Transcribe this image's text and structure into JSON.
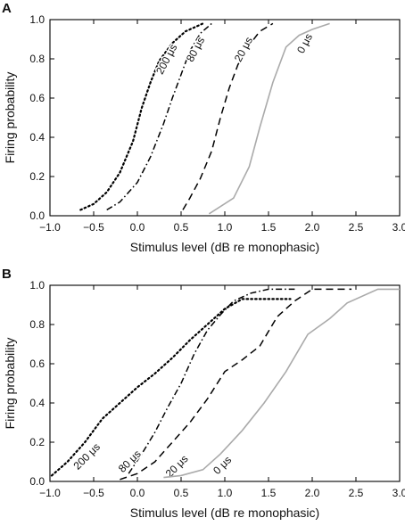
{
  "chart_data": [
    {
      "panel": "A",
      "type": "line",
      "xlabel": "Stimulus level (dB re monophasic)",
      "ylabel": "Firing probability",
      "xlim": [
        -1.0,
        3.0
      ],
      "ylim": [
        0.0,
        1.0
      ],
      "xticks": [
        "−1.0",
        "−0.5",
        "0.0",
        "0.5",
        "1.0",
        "1.5",
        "2.0",
        "2.5",
        "3.0"
      ],
      "yticks": [
        "0.0",
        "0.2",
        "0.4",
        "0.6",
        "0.8",
        "1.0"
      ],
      "grid": false,
      "series": [
        {
          "name": "200 μs",
          "style": "dotted",
          "color": "#000000",
          "x": [
            -0.65,
            -0.5,
            -0.35,
            -0.2,
            -0.05,
            0.05,
            0.15,
            0.25,
            0.4,
            0.55,
            0.75
          ],
          "y": [
            0.03,
            0.06,
            0.12,
            0.22,
            0.38,
            0.55,
            0.68,
            0.79,
            0.88,
            0.94,
            0.98
          ],
          "label_pos": [
            0.37,
            0.79
          ],
          "label_angle": -62
        },
        {
          "name": "80 μs",
          "style": "dashdot",
          "color": "#000000",
          "x": [
            -0.35,
            -0.2,
            0.0,
            0.15,
            0.3,
            0.4,
            0.5,
            0.6,
            0.72,
            0.85
          ],
          "y": [
            0.03,
            0.07,
            0.17,
            0.3,
            0.47,
            0.6,
            0.72,
            0.84,
            0.93,
            0.98
          ],
          "label_pos": [
            0.7,
            0.84
          ],
          "label_angle": -62
        },
        {
          "name": "20 μs",
          "style": "dashed",
          "color": "#000000",
          "x": [
            0.52,
            0.6,
            0.72,
            0.85,
            0.95,
            1.05,
            1.15,
            1.28,
            1.4,
            1.55
          ],
          "y": [
            0.03,
            0.09,
            0.19,
            0.33,
            0.5,
            0.65,
            0.77,
            0.87,
            0.94,
            0.98
          ],
          "label_pos": [
            1.25,
            0.84
          ],
          "label_angle": -62
        },
        {
          "name": "0 μs",
          "style": "solid",
          "color": "#aaaaaa",
          "x": [
            0.82,
            1.1,
            1.28,
            1.4,
            1.55,
            1.7,
            1.85,
            2.0,
            2.2
          ],
          "y": [
            0.01,
            0.09,
            0.25,
            0.45,
            0.68,
            0.86,
            0.92,
            0.95,
            0.98
          ],
          "label_pos": [
            1.95,
            0.87
          ],
          "label_angle": -62
        }
      ]
    },
    {
      "panel": "B",
      "type": "line",
      "xlabel": "Stimulus level (dB re monophasic)",
      "ylabel": "Firing probability",
      "xlim": [
        -1.0,
        3.0
      ],
      "ylim": [
        0.0,
        1.0
      ],
      "xticks": [
        "−1.0",
        "−0.5",
        "0.0",
        "0.5",
        "1.0",
        "1.5",
        "2.0",
        "2.5",
        "3.0"
      ],
      "yticks": [
        "0.0",
        "0.2",
        "0.4",
        "0.6",
        "0.8",
        "1.0"
      ],
      "grid": false,
      "series": [
        {
          "name": "200 μs",
          "style": "dotted",
          "color": "#000000",
          "x": [
            -0.98,
            -0.8,
            -0.6,
            -0.4,
            -0.2,
            0.0,
            0.2,
            0.4,
            0.6,
            0.8,
            1.0,
            1.2,
            1.4,
            1.6,
            1.75
          ],
          "y": [
            0.03,
            0.1,
            0.2,
            0.32,
            0.4,
            0.48,
            0.55,
            0.63,
            0.72,
            0.8,
            0.88,
            0.93,
            0.93,
            0.93,
            0.93
          ],
          "label_pos": [
            -0.55,
            0.115
          ],
          "label_angle": -45
        },
        {
          "name": "80 μs",
          "style": "dashdot",
          "color": "#000000",
          "x": [
            -0.1,
            0.05,
            0.2,
            0.35,
            0.5,
            0.65,
            0.8,
            0.95,
            1.1,
            1.3,
            1.5,
            1.65,
            1.8
          ],
          "y": [
            0.04,
            0.14,
            0.25,
            0.38,
            0.5,
            0.65,
            0.77,
            0.85,
            0.92,
            0.96,
            0.98,
            0.98,
            0.98
          ],
          "label_pos": [
            -0.06,
            0.09
          ],
          "label_angle": -45
        },
        {
          "name": "20 μs",
          "style": "dashed",
          "color": "#000000",
          "x": [
            -0.2,
            0.0,
            0.2,
            0.4,
            0.6,
            0.8,
            1.0,
            1.2,
            1.4,
            1.6,
            1.8,
            2.0,
            2.2,
            2.45
          ],
          "y": [
            0.01,
            0.04,
            0.1,
            0.2,
            0.3,
            0.42,
            0.56,
            0.62,
            0.69,
            0.84,
            0.92,
            0.98,
            0.98,
            0.98
          ],
          "label_pos": [
            0.48,
            0.065
          ],
          "label_angle": -45
        },
        {
          "name": "0 μs",
          "style": "solid",
          "color": "#aaaaaa",
          "x": [
            0.3,
            0.5,
            0.75,
            0.95,
            1.2,
            1.45,
            1.7,
            1.95,
            2.2,
            2.4,
            2.75,
            3.0
          ],
          "y": [
            0.02,
            0.03,
            0.06,
            0.14,
            0.26,
            0.4,
            0.56,
            0.75,
            0.83,
            0.91,
            0.98,
            0.98
          ],
          "label_pos": [
            1.0,
            0.07
          ],
          "label_angle": -45
        }
      ]
    }
  ]
}
